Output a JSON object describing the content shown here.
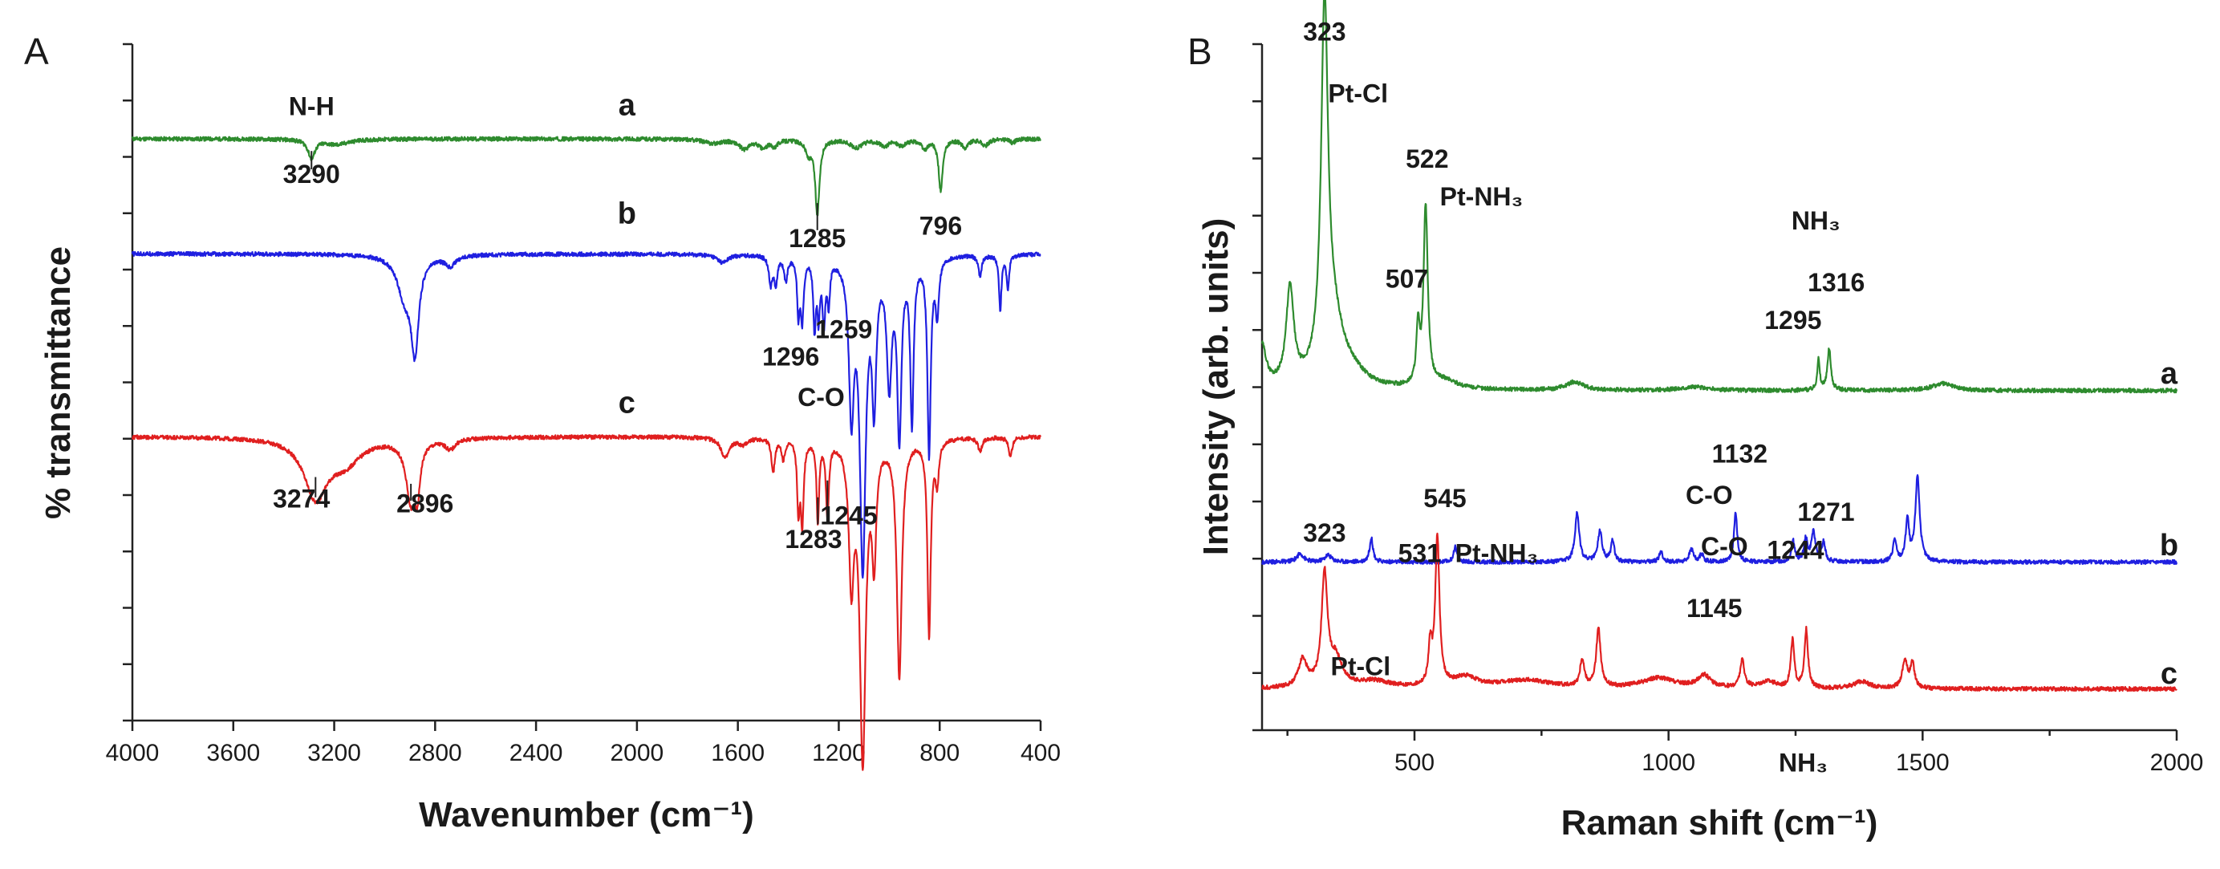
{
  "chart_data": [
    {
      "type": "line",
      "panel_label": "A",
      "title": "",
      "xlabel": "Wavenumber (cm⁻¹)",
      "ylabel": "% transmittance",
      "xlim": [
        4000,
        400
      ],
      "x_ticks": [
        "4000",
        "3600",
        "3200",
        "2800",
        "2400",
        "2000",
        "1600",
        "1200",
        "800",
        "400"
      ],
      "y_tick_labels": false,
      "series": [
        {
          "name": "a",
          "color": "#2e8b2e",
          "baseline": 0.86,
          "noise": 0.003,
          "bands": [
            [
              3290,
              0.028,
              16
            ],
            [
              3190,
              0.008,
              60
            ],
            [
              1700,
              0.006,
              40
            ],
            [
              1575,
              0.014,
              25
            ],
            [
              1500,
              0.012,
              20
            ],
            [
              1455,
              0.009,
              15
            ],
            [
              1320,
              0.02,
              14
            ],
            [
              1285,
              0.11,
              10
            ],
            [
              1130,
              0.012,
              30
            ],
            [
              1020,
              0.01,
              20
            ],
            [
              950,
              0.009,
              20
            ],
            [
              860,
              0.014,
              15
            ],
            [
              796,
              0.075,
              10
            ],
            [
              700,
              0.012,
              15
            ],
            [
              620,
              0.01,
              15
            ],
            [
              510,
              0.006,
              10
            ]
          ]
        },
        {
          "name": "b",
          "color": "#1f1fe0",
          "baseline": 0.69,
          "noise": 0.003,
          "bands": [
            [
              2920,
              0.06,
              35
            ],
            [
              2880,
              0.13,
              18
            ],
            [
              2740,
              0.015,
              25
            ],
            [
              1660,
              0.012,
              25
            ],
            [
              1470,
              0.04,
              8
            ],
            [
              1450,
              0.04,
              8
            ],
            [
              1410,
              0.035,
              8
            ],
            [
              1360,
              0.08,
              6
            ],
            [
              1345,
              0.09,
              7
            ],
            [
              1296,
              0.1,
              6
            ],
            [
              1280,
              0.08,
              6
            ],
            [
              1259,
              0.09,
              7
            ],
            [
              1240,
              0.06,
              6
            ],
            [
              1150,
              0.22,
              12
            ],
            [
              1105,
              0.45,
              14
            ],
            [
              1060,
              0.2,
              10
            ],
            [
              1000,
              0.18,
              12
            ],
            [
              960,
              0.26,
              10
            ],
            [
              910,
              0.24,
              8
            ],
            [
              842,
              0.29,
              8
            ],
            [
              810,
              0.08,
              8
            ],
            [
              640,
              0.03,
              8
            ],
            [
              560,
              0.08,
              6
            ],
            [
              530,
              0.05,
              6
            ]
          ]
        },
        {
          "name": "c",
          "color": "#e01f1f",
          "baseline": 0.42,
          "noise": 0.003,
          "bands": [
            [
              3274,
              0.085,
              55
            ],
            [
              3160,
              0.035,
              80
            ],
            [
              2896,
              0.09,
              24
            ],
            [
              2870,
              0.06,
              12
            ],
            [
              2740,
              0.015,
              25
            ],
            [
              1650,
              0.03,
              20
            ],
            [
              1580,
              0.01,
              20
            ],
            [
              1460,
              0.05,
              8
            ],
            [
              1420,
              0.03,
              8
            ],
            [
              1360,
              0.1,
              6
            ],
            [
              1345,
              0.12,
              7
            ],
            [
              1283,
              0.12,
              6
            ],
            [
              1245,
              0.11,
              7
            ],
            [
              1150,
              0.2,
              12
            ],
            [
              1105,
              0.47,
              14
            ],
            [
              1060,
              0.16,
              10
            ],
            [
              960,
              0.35,
              12
            ],
            [
              842,
              0.29,
              8
            ],
            [
              810,
              0.06,
              8
            ],
            [
              640,
              0.02,
              10
            ],
            [
              520,
              0.03,
              8
            ]
          ]
        }
      ],
      "series_labels": [
        {
          "text": "a",
          "x": 2040,
          "y": 0.895
        },
        {
          "text": "b",
          "x": 2040,
          "y": 0.735
        },
        {
          "text": "c",
          "x": 2040,
          "y": 0.455
        }
      ],
      "annotations": [
        {
          "text": "N-H",
          "x": 3290,
          "y": 0.895,
          "anchor": "middle"
        },
        {
          "text": "3290",
          "x": 3290,
          "y": 0.795,
          "anchor": "middle",
          "leader": [
            3290,
            0.842,
            0.815
          ]
        },
        {
          "text": "1285",
          "x": 1285,
          "y": 0.7,
          "anchor": "middle",
          "leader": [
            1285,
            0.765,
            0.725
          ]
        },
        {
          "text": "796",
          "x": 796,
          "y": 0.718,
          "anchor": "middle"
        },
        {
          "text": "1259",
          "x": 1180,
          "y": 0.565,
          "anchor": "middle"
        },
        {
          "text": "1296",
          "x": 1390,
          "y": 0.525,
          "anchor": "middle"
        },
        {
          "text": "C-O",
          "x": 1270,
          "y": 0.465,
          "anchor": "middle"
        },
        {
          "text": "3274",
          "x": 3330,
          "y": 0.315,
          "anchor": "middle",
          "leader": [
            3274,
            0.36,
            0.33
          ]
        },
        {
          "text": "2896",
          "x": 2840,
          "y": 0.308,
          "anchor": "middle",
          "leader": [
            2896,
            0.35,
            0.325
          ]
        },
        {
          "text": "1245",
          "x": 1160,
          "y": 0.29,
          "anchor": "middle",
          "leader": [
            1245,
            0.355,
            0.31
          ]
        },
        {
          "text": "1283",
          "x": 1300,
          "y": 0.255,
          "anchor": "middle",
          "leader": [
            1283,
            0.33,
            0.29
          ]
        }
      ]
    },
    {
      "type": "line",
      "panel_label": "B",
      "title": "",
      "xlabel": "Raman shift (cm⁻¹)",
      "ylabel": "Intensity (arb. units)",
      "xlim": [
        200,
        2000
      ],
      "x_ticks": [
        "500",
        "1000",
        "1500",
        "2000"
      ],
      "y_tick_labels": false,
      "series": [
        {
          "name": "a",
          "color": "#2e8b2e",
          "baseline": 0.495,
          "noise": 0.003,
          "bands": [
            [
              200,
              0.06,
              10
            ],
            [
              255,
              0.14,
              9
            ],
            [
              323,
              0.52,
              8
            ],
            [
              340,
              0.09,
              25
            ],
            [
              380,
              0.015,
              30
            ],
            [
              507,
              0.08,
              4
            ],
            [
              522,
              0.26,
              5
            ],
            [
              560,
              0.012,
              30
            ],
            [
              815,
              0.012,
              20
            ],
            [
              1050,
              0.005,
              30
            ],
            [
              1295,
              0.045,
              3
            ],
            [
              1316,
              0.06,
              4
            ],
            [
              1540,
              0.01,
              25
            ]
          ]
        },
        {
          "name": "b",
          "color": "#1f1fe0",
          "baseline": 0.245,
          "noise": 0.003,
          "bands": [
            [
              275,
              0.012,
              8
            ],
            [
              330,
              0.01,
              8
            ],
            [
              415,
              0.035,
              4
            ],
            [
              580,
              0.022,
              4
            ],
            [
              820,
              0.072,
              5
            ],
            [
              865,
              0.045,
              5
            ],
            [
              890,
              0.032,
              4
            ],
            [
              985,
              0.015,
              4
            ],
            [
              1045,
              0.018,
              5
            ],
            [
              1065,
              0.012,
              4
            ],
            [
              1132,
              0.07,
              4
            ],
            [
              1245,
              0.03,
              4
            ],
            [
              1270,
              0.032,
              4
            ],
            [
              1285,
              0.042,
              5
            ],
            [
              1305,
              0.028,
              4
            ],
            [
              1445,
              0.032,
              4
            ],
            [
              1470,
              0.06,
              4
            ],
            [
              1490,
              0.125,
              5
            ]
          ]
        },
        {
          "name": "c",
          "color": "#e01f1f",
          "baseline": 0.06,
          "noise": 0.003,
          "bands": [
            [
              280,
              0.04,
              10
            ],
            [
              323,
              0.16,
              7
            ],
            [
              345,
              0.04,
              15
            ],
            [
              420,
              0.01,
              40
            ],
            [
              531,
              0.055,
              4
            ],
            [
              545,
              0.215,
              5
            ],
            [
              600,
              0.015,
              30
            ],
            [
              720,
              0.012,
              60
            ],
            [
              830,
              0.04,
              5
            ],
            [
              862,
              0.085,
              5
            ],
            [
              980,
              0.015,
              40
            ],
            [
              1070,
              0.018,
              15
            ],
            [
              1145,
              0.04,
              5
            ],
            [
              1195,
              0.01,
              20
            ],
            [
              1244,
              0.07,
              4
            ],
            [
              1271,
              0.085,
              4
            ],
            [
              1380,
              0.01,
              20
            ],
            [
              1465,
              0.04,
              6
            ],
            [
              1480,
              0.035,
              5
            ]
          ]
        }
      ],
      "series_labels": [
        {
          "text": "a",
          "x": 1985,
          "y": 0.505
        },
        {
          "text": "b",
          "x": 1985,
          "y": 0.255
        },
        {
          "text": "c",
          "x": 1985,
          "y": 0.068
        }
      ],
      "annotations": [
        {
          "text": "323",
          "x": 323,
          "y": 1.005,
          "anchor": "middle"
        },
        {
          "text": "Pt-Cl",
          "x": 330,
          "y": 0.915,
          "anchor": "start"
        },
        {
          "text": "522",
          "x": 525,
          "y": 0.82,
          "anchor": "middle"
        },
        {
          "text": "Pt-NH₃",
          "x": 550,
          "y": 0.765,
          "anchor": "start"
        },
        {
          "text": "507",
          "x": 485,
          "y": 0.645,
          "anchor": "middle"
        },
        {
          "text": "NH₃",
          "x": 1290,
          "y": 0.73,
          "anchor": "middle"
        },
        {
          "text": "1316",
          "x": 1330,
          "y": 0.64,
          "anchor": "middle"
        },
        {
          "text": "1295",
          "x": 1245,
          "y": 0.585,
          "anchor": "middle"
        },
        {
          "text": "1132",
          "x": 1140,
          "y": 0.39,
          "anchor": "middle"
        },
        {
          "text": "C-O",
          "x": 1080,
          "y": 0.33,
          "anchor": "middle"
        },
        {
          "text": "323",
          "x": 323,
          "y": 0.275,
          "anchor": "middle"
        },
        {
          "text": "545",
          "x": 560,
          "y": 0.325,
          "anchor": "middle"
        },
        {
          "text": "531",
          "x": 510,
          "y": 0.245,
          "anchor": "middle"
        },
        {
          "text": "Pt-NH₃",
          "x": 580,
          "y": 0.245,
          "anchor": "start"
        },
        {
          "text": "Pt-Cl",
          "x": 335,
          "y": 0.08,
          "anchor": "start"
        },
        {
          "text": "C-O",
          "x": 1110,
          "y": 0.255,
          "anchor": "middle"
        },
        {
          "text": "1244",
          "x": 1250,
          "y": 0.25,
          "anchor": "middle"
        },
        {
          "text": "1271",
          "x": 1310,
          "y": 0.305,
          "anchor": "middle"
        },
        {
          "text": "1145",
          "x": 1090,
          "y": 0.165,
          "anchor": "middle"
        },
        {
          "text": "NH₃",
          "x": 1265,
          "y": -0.06,
          "anchor": "middle"
        }
      ]
    }
  ]
}
